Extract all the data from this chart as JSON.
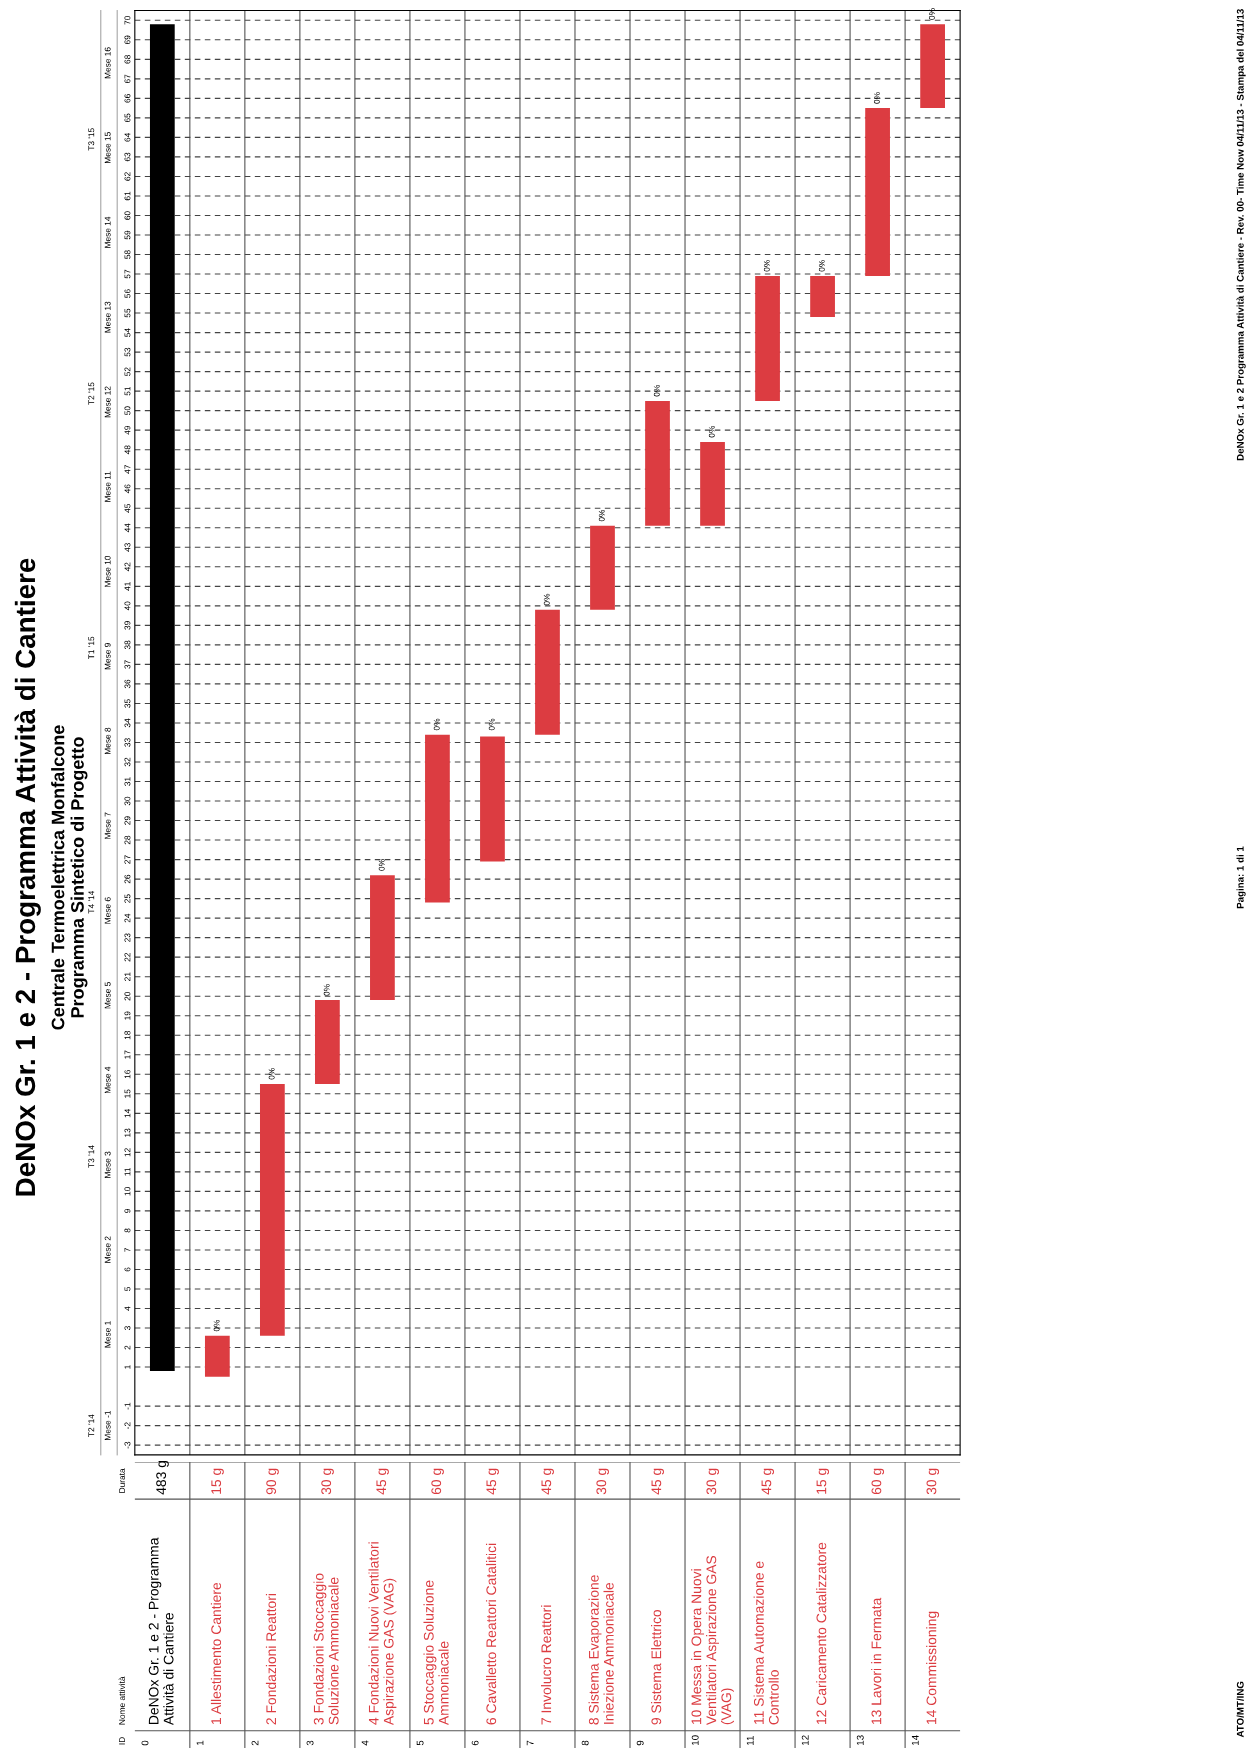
{
  "chart_data": {
    "type": "bar",
    "title": "DeNOx Gr. 1 e 2 - Programma Attività di Cantiere",
    "subtitle": "Centrale Termoelettrica Monfalcone\nProgramma Sintetico di Progetto",
    "categories": [
      "DeNOx Gr. 1 e 2 - Programma\nAttività di Cantiere",
      "1 Allestimento Cantiere",
      "2 Fondazioni Reattori",
      "3 Fondazioni Stoccaggio\nSoluzione Ammoniacale",
      "4 Fondazioni Nuovi Ventilatori\nAspirazione GAS (VAG)",
      "5 Stoccaggio Soluzione\nAmmoniacale",
      "6 Cavalletto Reattori Catalitici",
      "7 Involucro Reattori",
      "8 Sistema Evaporazione\nIniezione Ammoniacale",
      "9 Sistema Elettrico",
      "10 Messa in Opera Nuovi\nVentilatori Aspirazione GAS\n(VAG)",
      "11 Sistema Automazione e\nControllo",
      "12 Caricamento Catalizzatore",
      "13 Lavori in Fermata",
      "14 Commissioning"
    ],
    "base": [
      0.8,
      0.5,
      2.6,
      15.5,
      19.8,
      24.8,
      26.9,
      33.4,
      39.8,
      44.1,
      44.1,
      50.5,
      54.8,
      56.9,
      65.5
    ],
    "values": [
      69,
      2.1,
      12.9,
      4.3,
      6.4,
      8.6,
      6.4,
      6.4,
      4.3,
      6.4,
      4.3,
      6.4,
      2.1,
      8.6,
      4.3
    ],
    "colors": [
      "#000000",
      "#dc3c41",
      "#dc3c41",
      "#dc3c41",
      "#dc3c41",
      "#dc3c41",
      "#dc3c41",
      "#dc3c41",
      "#dc3c41",
      "#dc3c41",
      "#dc3c41",
      "#dc3c41",
      "#dc3c41",
      "#dc3c41",
      "#dc3c41"
    ],
    "ylim": [
      -3.5,
      70.5
    ],
    "yticks": [
      -3,
      -2,
      -1,
      1,
      2,
      3,
      4,
      5,
      6,
      7,
      8,
      9,
      10,
      11,
      12,
      13,
      14,
      15,
      16,
      17,
      18,
      19,
      20,
      21,
      22,
      23,
      24,
      25,
      26,
      27,
      28,
      29,
      30,
      31,
      32,
      33,
      34,
      35,
      36,
      37,
      38,
      39,
      40,
      41,
      42,
      43,
      44,
      45,
      46,
      47,
      48,
      49,
      50,
      51,
      52,
      53,
      54,
      55,
      56,
      57,
      58,
      59,
      60,
      61,
      62,
      63,
      64,
      65,
      66,
      67,
      68,
      69,
      70
    ],
    "grid": "y",
    "annotations": [
      "ID",
      "Nome attività",
      "Durata",
      "0",
      "1",
      "2",
      "3",
      "4",
      "5",
      "6",
      "7",
      "8",
      "9",
      "10",
      "11",
      "12",
      "13",
      "14",
      "483 g",
      "15 g",
      "90 g",
      "30 g",
      "45 g",
      "60 g",
      "45 g",
      "45 g",
      "30 g",
      "45 g",
      "30 g",
      "45 g",
      "15 g",
      "60 g",
      "30 g",
      "Mese -1",
      "Mese 1",
      "Mese 2",
      "Mese 3",
      "Mese 4",
      "Mese 5",
      "Mese 6",
      "Mese 7",
      "Mese 8",
      "Mese 9",
      "Mese 10",
      "Mese 11",
      "Mese 12",
      "Mese 13",
      "Mese 14",
      "Mese 15",
      "Mese 16",
      "T2 '14",
      "T3 '14",
      "T4 '14",
      "T1 '15",
      "T2 '15",
      "T3 '15",
      "ATO/MT/ING",
      "Pagina: 1 di 1",
      "DeNOx Gr. 1 e 2 Programma Attività di Cantiere - Rev. 00- Time Now 04/11/13 - Stampa del 04/11/13",
      {
        "text": "0%",
        "x": "1 Allestimento Cantiere",
        "y": 2.6
      },
      {
        "text": "0%",
        "x": "2 Fondazioni Reattori",
        "y": 15.5
      },
      {
        "text": "0%",
        "x": "3 Fondazioni Stoccaggio\nSoluzione Ammoniacale",
        "y": 19.8
      },
      {
        "text": "0%",
        "x": "4 Fondazioni Nuovi Ventilatori\nAspirazione GAS (VAG)",
        "y": 26.2
      },
      {
        "text": "0%",
        "x": "5 Stoccaggio Soluzione\nAmmoniacale",
        "y": 33.4
      },
      {
        "text": "0%",
        "x": "6 Cavalletto Reattori Catalitici",
        "y": 33.4
      },
      {
        "text": "0%",
        "x": "7 Involucro Reattori",
        "y": 39.8
      },
      {
        "text": "0%",
        "x": "8 Sistema Evaporazione\nIniezione Ammoniacale",
        "y": 44.1
      },
      {
        "text": "0%",
        "x": "9 Sistema Elettrico",
        "y": 50.5
      },
      {
        "text": "0%",
        "x": "10 Messa in Opera Nuovi\nVentilatori Aspirazione GAS\n(VAG)",
        "y": 48.4
      },
      {
        "text": "0%",
        "x": "11 Sistema Automazione e\nControllo",
        "y": 56.9
      },
      {
        "text": "0%",
        "x": "12 Caricamento Catalizzatore",
        "y": 56.9
      },
      {
        "text": "0%",
        "x": "13 Lavori in Fermata",
        "y": 65.5
      },
      {
        "text": "0%",
        "x": "14 Commissioning",
        "y": 69.8
      }
    ]
  }
}
